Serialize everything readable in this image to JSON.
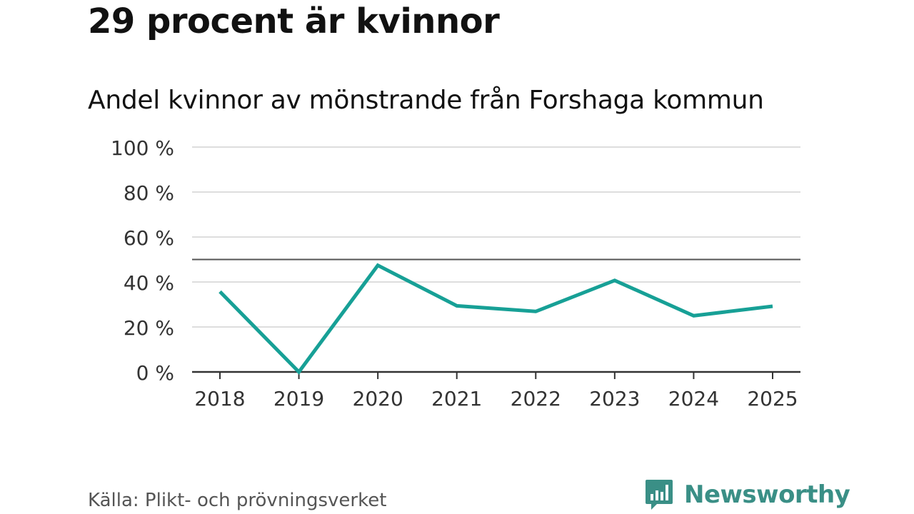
{
  "header": {
    "title": "29 procent är kvinnor"
  },
  "chart_data": {
    "type": "line",
    "title": "Andel kvinnor av mönstrande från Forshaga kommun",
    "xlabel": "",
    "ylabel": "",
    "categories": [
      "2018",
      "2019",
      "2020",
      "2021",
      "2022",
      "2023",
      "2024",
      "2025"
    ],
    "series": [
      {
        "name": "Andel kvinnor",
        "values": [
          35.7,
          0,
          47.4,
          29.4,
          26.9,
          40.7,
          25,
          29.2
        ],
        "color": "#17a096"
      }
    ],
    "ylim": [
      0,
      100
    ],
    "yticks": [
      0,
      20,
      40,
      60,
      80,
      100
    ],
    "ytick_labels": [
      "0 %",
      "20 %",
      "40 %",
      "60 %",
      "80 %",
      "100 %"
    ],
    "reference_line": 50,
    "grid": true
  },
  "footer": {
    "source": "Källa: Plikt- och prövningsverket",
    "brand": "Newsworthy"
  },
  "colors": {
    "line": "#17a096",
    "grid": "#dddddd",
    "axis": "#333333",
    "reference": "#555555",
    "brand": "#3a8f86"
  }
}
